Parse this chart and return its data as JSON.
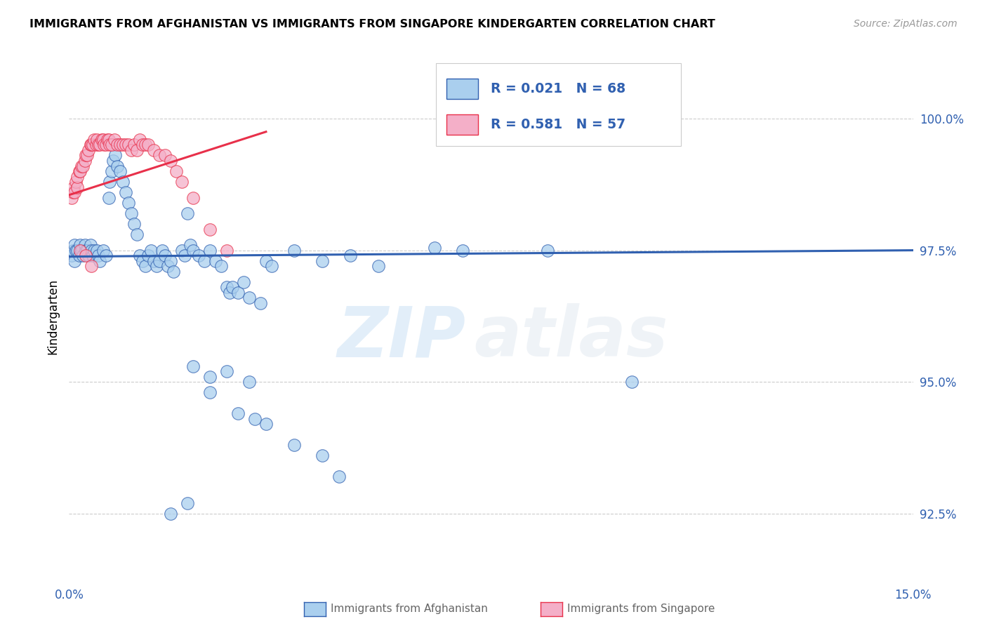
{
  "title": "IMMIGRANTS FROM AFGHANISTAN VS IMMIGRANTS FROM SINGAPORE KINDERGARTEN CORRELATION CHART",
  "source": "Source: ZipAtlas.com",
  "ylabel": "Kindergarten",
  "ytick_values": [
    92.5,
    95.0,
    97.5,
    100.0
  ],
  "xlim": [
    0.0,
    15.0
  ],
  "ylim": [
    91.2,
    101.3
  ],
  "watermark_zip": "ZIP",
  "watermark_atlas": "atlas",
  "color_afghanistan": "#aacfee",
  "color_singapore": "#f4afc8",
  "color_line_afghanistan": "#3060b0",
  "color_line_singapore": "#e8304a",
  "color_axis_labels": "#3060b0",
  "af_line_slope": 0.008,
  "af_line_intercept": 97.38,
  "sg_line_x0": 0.0,
  "sg_line_y0": 98.55,
  "sg_line_x1": 3.5,
  "sg_line_y1": 99.75,
  "afghanistan_points": [
    [
      0.05,
      97.4
    ],
    [
      0.07,
      97.5
    ],
    [
      0.09,
      97.6
    ],
    [
      0.1,
      97.3
    ],
    [
      0.12,
      97.5
    ],
    [
      0.15,
      97.5
    ],
    [
      0.18,
      97.4
    ],
    [
      0.2,
      97.6
    ],
    [
      0.22,
      97.5
    ],
    [
      0.25,
      97.4
    ],
    [
      0.28,
      97.6
    ],
    [
      0.3,
      97.5
    ],
    [
      0.32,
      97.5
    ],
    [
      0.35,
      97.4
    ],
    [
      0.38,
      97.6
    ],
    [
      0.4,
      97.5
    ],
    [
      0.42,
      97.4
    ],
    [
      0.45,
      97.5
    ],
    [
      0.5,
      97.5
    ],
    [
      0.52,
      97.4
    ],
    [
      0.55,
      97.3
    ],
    [
      0.6,
      97.5
    ],
    [
      0.65,
      97.4
    ],
    [
      0.7,
      98.5
    ],
    [
      0.72,
      98.8
    ],
    [
      0.75,
      99.0
    ],
    [
      0.78,
      99.2
    ],
    [
      0.8,
      99.5
    ],
    [
      0.82,
      99.3
    ],
    [
      0.85,
      99.1
    ],
    [
      0.9,
      99.0
    ],
    [
      0.95,
      98.8
    ],
    [
      1.0,
      98.6
    ],
    [
      1.05,
      98.4
    ],
    [
      1.1,
      98.2
    ],
    [
      1.15,
      98.0
    ],
    [
      1.2,
      97.8
    ],
    [
      1.25,
      97.4
    ],
    [
      1.3,
      97.3
    ],
    [
      1.35,
      97.2
    ],
    [
      1.4,
      97.4
    ],
    [
      1.45,
      97.5
    ],
    [
      1.5,
      97.3
    ],
    [
      1.55,
      97.2
    ],
    [
      1.6,
      97.3
    ],
    [
      1.65,
      97.5
    ],
    [
      1.7,
      97.4
    ],
    [
      1.75,
      97.2
    ],
    [
      1.8,
      97.3
    ],
    [
      1.85,
      97.1
    ],
    [
      2.0,
      97.5
    ],
    [
      2.05,
      97.4
    ],
    [
      2.1,
      98.2
    ],
    [
      2.15,
      97.6
    ],
    [
      2.2,
      97.5
    ],
    [
      2.3,
      97.4
    ],
    [
      2.4,
      97.3
    ],
    [
      2.5,
      97.5
    ],
    [
      2.6,
      97.3
    ],
    [
      2.7,
      97.2
    ],
    [
      2.8,
      96.8
    ],
    [
      2.85,
      96.7
    ],
    [
      2.9,
      96.8
    ],
    [
      3.0,
      96.7
    ],
    [
      3.1,
      96.9
    ],
    [
      3.2,
      96.6
    ],
    [
      3.4,
      96.5
    ],
    [
      3.5,
      97.3
    ],
    [
      3.6,
      97.2
    ],
    [
      4.0,
      97.5
    ],
    [
      4.5,
      97.3
    ],
    [
      5.0,
      97.4
    ],
    [
      5.5,
      97.2
    ],
    [
      6.5,
      97.55
    ],
    [
      7.0,
      97.5
    ],
    [
      8.5,
      97.5
    ],
    [
      2.5,
      94.8
    ],
    [
      3.0,
      94.4
    ],
    [
      3.3,
      94.3
    ],
    [
      3.5,
      94.2
    ],
    [
      4.0,
      93.8
    ],
    [
      4.5,
      93.6
    ],
    [
      4.8,
      93.2
    ],
    [
      2.2,
      95.3
    ],
    [
      2.5,
      95.1
    ],
    [
      2.8,
      95.2
    ],
    [
      3.2,
      95.0
    ],
    [
      1.8,
      92.5
    ],
    [
      2.1,
      92.7
    ],
    [
      10.0,
      95.0
    ]
  ],
  "singapore_points": [
    [
      0.05,
      98.5
    ],
    [
      0.07,
      98.6
    ],
    [
      0.08,
      98.7
    ],
    [
      0.1,
      98.6
    ],
    [
      0.12,
      98.8
    ],
    [
      0.14,
      98.7
    ],
    [
      0.15,
      98.9
    ],
    [
      0.18,
      99.0
    ],
    [
      0.2,
      99.0
    ],
    [
      0.22,
      99.1
    ],
    [
      0.25,
      99.1
    ],
    [
      0.28,
      99.2
    ],
    [
      0.3,
      99.3
    ],
    [
      0.32,
      99.3
    ],
    [
      0.35,
      99.4
    ],
    [
      0.38,
      99.5
    ],
    [
      0.4,
      99.5
    ],
    [
      0.42,
      99.5
    ],
    [
      0.45,
      99.6
    ],
    [
      0.48,
      99.5
    ],
    [
      0.5,
      99.6
    ],
    [
      0.52,
      99.5
    ],
    [
      0.55,
      99.5
    ],
    [
      0.58,
      99.6
    ],
    [
      0.6,
      99.6
    ],
    [
      0.62,
      99.5
    ],
    [
      0.65,
      99.5
    ],
    [
      0.68,
      99.6
    ],
    [
      0.7,
      99.6
    ],
    [
      0.72,
      99.5
    ],
    [
      0.75,
      99.5
    ],
    [
      0.8,
      99.6
    ],
    [
      0.85,
      99.5
    ],
    [
      0.9,
      99.5
    ],
    [
      0.95,
      99.5
    ],
    [
      1.0,
      99.5
    ],
    [
      1.05,
      99.5
    ],
    [
      1.1,
      99.4
    ],
    [
      1.15,
      99.5
    ],
    [
      1.2,
      99.4
    ],
    [
      1.25,
      99.6
    ],
    [
      1.3,
      99.5
    ],
    [
      1.35,
      99.5
    ],
    [
      1.4,
      99.5
    ],
    [
      1.5,
      99.4
    ],
    [
      1.6,
      99.3
    ],
    [
      1.7,
      99.3
    ],
    [
      1.8,
      99.2
    ],
    [
      1.9,
      99.0
    ],
    [
      2.0,
      98.8
    ],
    [
      2.2,
      98.5
    ],
    [
      2.5,
      97.9
    ],
    [
      2.8,
      97.5
    ],
    [
      0.2,
      97.5
    ],
    [
      0.3,
      97.4
    ],
    [
      0.4,
      97.2
    ]
  ]
}
